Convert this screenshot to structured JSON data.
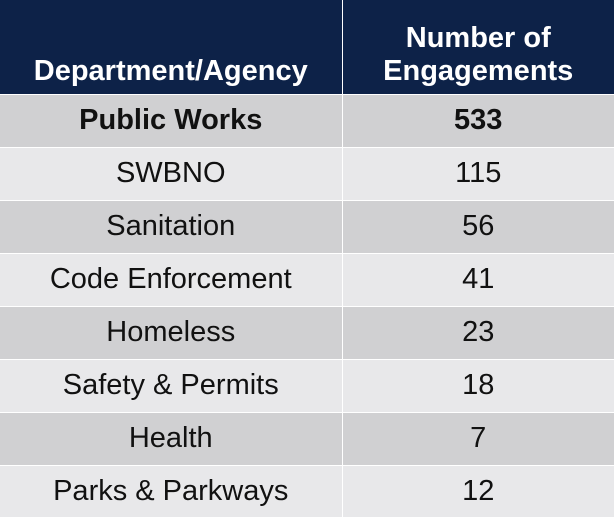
{
  "chart_data": {
    "type": "table",
    "columns": [
      "Department/Agency",
      "Number of Engagements"
    ],
    "header_lines": {
      "col1": [
        "Department/Agency"
      ],
      "col2": [
        "Number of",
        "Engagements"
      ]
    },
    "rows": [
      {
        "department": "Public Works",
        "engagements": "533"
      },
      {
        "department": "SWBNO",
        "engagements": "115"
      },
      {
        "department": "Sanitation",
        "engagements": "56"
      },
      {
        "department": "Code Enforcement",
        "engagements": "41"
      },
      {
        "department": "Homeless",
        "engagements": "23"
      },
      {
        "department": "Safety & Permits",
        "engagements": "18"
      },
      {
        "department": "Health",
        "engagements": "7"
      },
      {
        "department": "Parks & Parkways",
        "engagements": "12"
      }
    ],
    "bold_rows": [
      0
    ]
  },
  "colors": {
    "header_bg": "#0d2248",
    "header_text": "#ffffff",
    "row_dark": "#d0d0d2",
    "row_light": "#e8e8ea"
  }
}
